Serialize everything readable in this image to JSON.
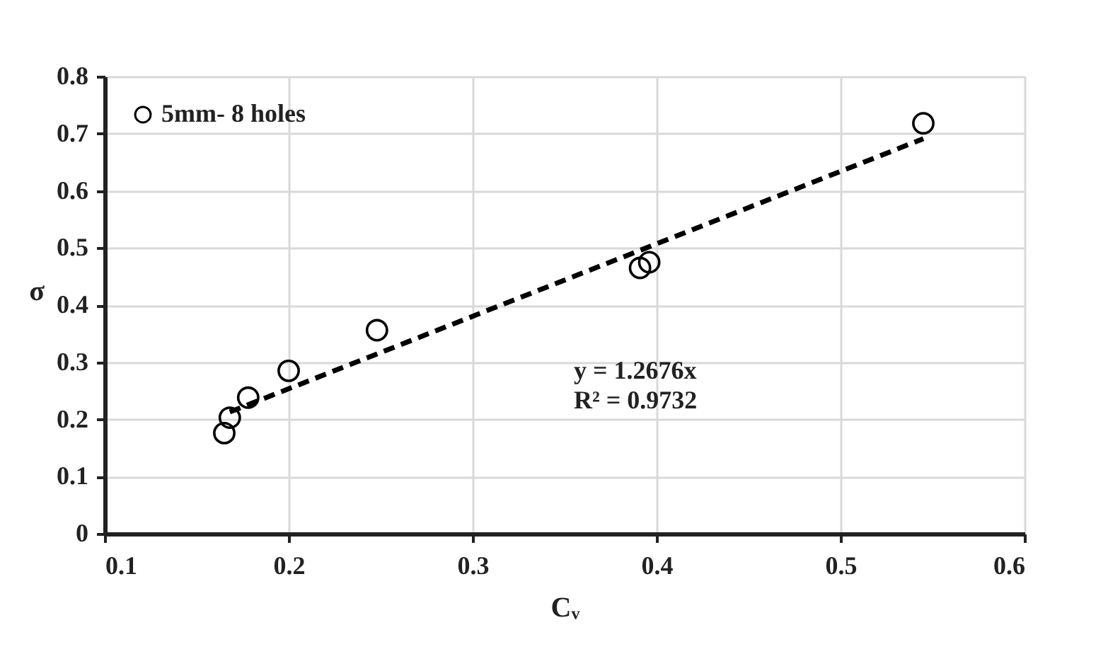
{
  "chart_data": {
    "type": "scatter",
    "xlabel": "Cᵥ",
    "ylabel": "σ",
    "xlim": [
      0.1,
      0.6
    ],
    "xticks": [
      0.1,
      0.2,
      0.3,
      0.4,
      0.5,
      0.6
    ],
    "ylim": [
      0,
      0.8
    ],
    "yticks": [
      0,
      0.1,
      0.2,
      0.3,
      0.4,
      0.5,
      0.6,
      0.7,
      0.8
    ],
    "grid": true,
    "legend": "top left",
    "series": [
      {
        "name": "5mm- 8 holes",
        "marker": "circle",
        "color": "#000000",
        "x": [
          0.165,
          0.168,
          0.178,
          0.2,
          0.248,
          0.391,
          0.396,
          0.545
        ],
        "values": [
          0.176,
          0.203,
          0.238,
          0.285,
          0.356,
          0.465,
          0.475,
          0.718
        ]
      },
      {
        "type": "line",
        "color": "#000000",
        "line_style": "dashed",
        "x": [
          0.168,
          0.545
        ],
        "values": [
          0.213,
          0.691
        ]
      }
    ],
    "annotations": [
      "y = 1.2676x",
      "R² = 0.9732"
    ]
  }
}
